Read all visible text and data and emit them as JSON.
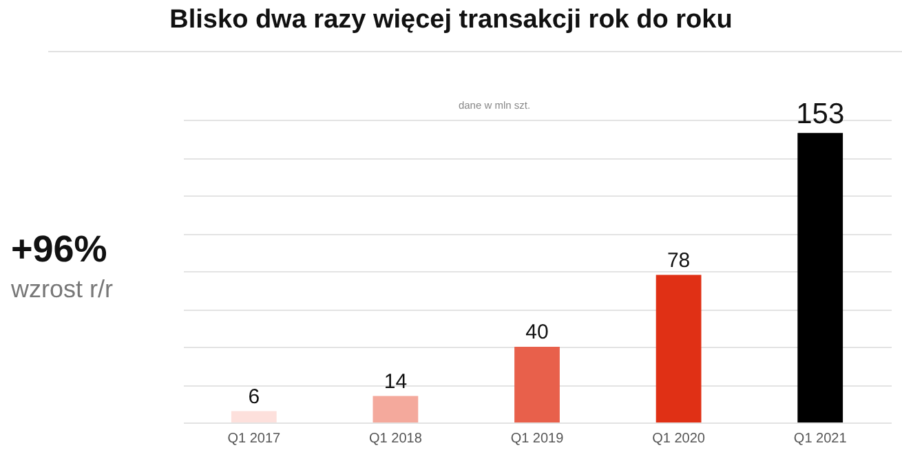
{
  "chart_data": {
    "type": "bar",
    "title": "Blisko dwa razy więcej transakcji rok do roku",
    "categories": [
      "Q1 2017",
      "Q1 2018",
      "Q1 2019",
      "Q1 2020",
      "Q1 2021"
    ],
    "values": [
      6,
      14,
      40,
      78,
      153
    ],
    "colors": [
      "#fde0dc",
      "#f4a99c",
      "#e8604b",
      "#e03015",
      "#000000"
    ],
    "tick_labels": "x",
    "grid": "y",
    "data_labels": true,
    "annotations": [
      "dane w mln szt.",
      "+96%",
      "wzrost r/r"
    ]
  }
}
